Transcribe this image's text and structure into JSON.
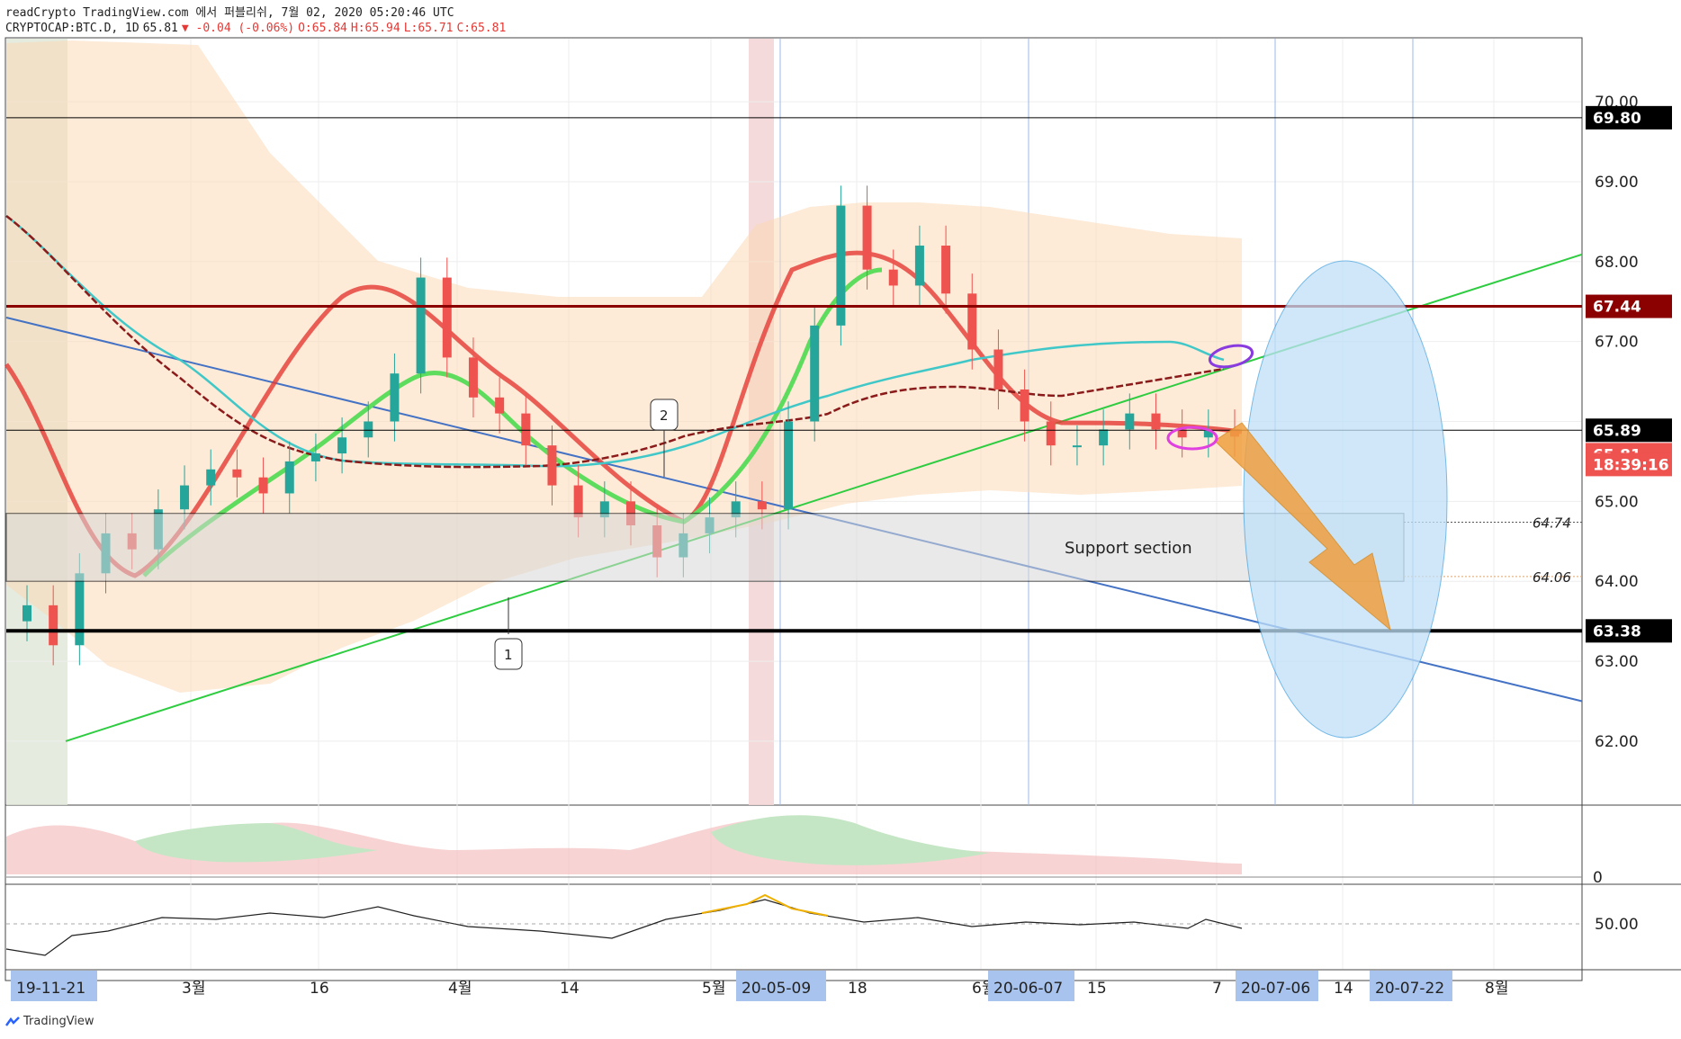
{
  "header": {
    "publish_line": "readCrypto TradingView.com 에서 퍼블리쉬, 7월 02, 2020 05:20:46 UTC",
    "symbol": "CRYPTOCAP:BTC.D, 1D",
    "last": "65.81",
    "change": "▼ -0.04 (-0.06%)",
    "o": "O:65.84",
    "h": "H:65.94",
    "l": "L:65.71",
    "c": "C:65.81"
  },
  "colors": {
    "up": "#26a69a",
    "down": "#ef5350",
    "accent_red_line": "#8b0000",
    "support_line": "#000000",
    "trend_green": "#2ecc40",
    "trend_blue": "#4472c4",
    "cloud": "#fcd9b6",
    "ellipse": "#bfe0f8",
    "arrow": "#f0a040"
  },
  "price_axis": {
    "ticks": [
      "70.00",
      "69.00",
      "68.00",
      "67.00",
      "65.00",
      "64.00",
      "63.00",
      "62.00"
    ],
    "labels": [
      {
        "text": "69.80",
        "style": "black"
      },
      {
        "text": "67.44",
        "style": "darkred"
      },
      {
        "text": "65.89",
        "style": "black"
      },
      {
        "text": "65.81",
        "style": "red"
      },
      {
        "text": "18:39:16",
        "style": "red"
      },
      {
        "text": "63.38",
        "style": "black"
      }
    ],
    "italic_levels": [
      "64.74",
      "64.06"
    ]
  },
  "time_axis": {
    "ticks": [
      "3월",
      "16",
      "4월",
      "14",
      "5월",
      "18",
      "6월",
      "15",
      "7",
      "14",
      "8월"
    ],
    "highlighted": [
      "19-11-21",
      "20-05-09",
      "20-06-07",
      "20-07-06",
      "20-07-22"
    ]
  },
  "annotations": {
    "support_label": "Support section",
    "callout_1": "1",
    "callout_2": "2"
  },
  "indicator1": {
    "zero_label": "0"
  },
  "indicator2": {
    "level_label": "50.00"
  },
  "footer": {
    "brand": "TradingView"
  },
  "chart_data": {
    "type": "candlestick",
    "symbol": "CRYPTOCAP:BTC.D",
    "interval": "1D",
    "ylim": [
      61.2,
      70.8
    ],
    "levels": {
      "resistance_high": 69.8,
      "resistance": 67.44,
      "current_ref": 65.89,
      "last": 65.81,
      "support_top": 64.74,
      "support_bottom": 64.06,
      "support_low": 63.38
    },
    "support_section": {
      "label": "Support section",
      "range": [
        64.0,
        64.85
      ]
    },
    "close_series": [
      63.7,
      63.2,
      64.1,
      64.6,
      64.4,
      64.9,
      65.2,
      65.4,
      65.3,
      65.1,
      65.5,
      65.6,
      65.8,
      66.0,
      66.6,
      67.8,
      66.8,
      66.3,
      66.1,
      65.7,
      65.2,
      64.8,
      65.0,
      64.7,
      64.3,
      64.6,
      64.8,
      65.0,
      64.9,
      66.0,
      67.2,
      68.7,
      67.9,
      67.7,
      68.2,
      67.6,
      66.9,
      66.4,
      66.0,
      65.7,
      65.7,
      65.9,
      66.1,
      65.9,
      65.8,
      65.9,
      65.81
    ]
  }
}
